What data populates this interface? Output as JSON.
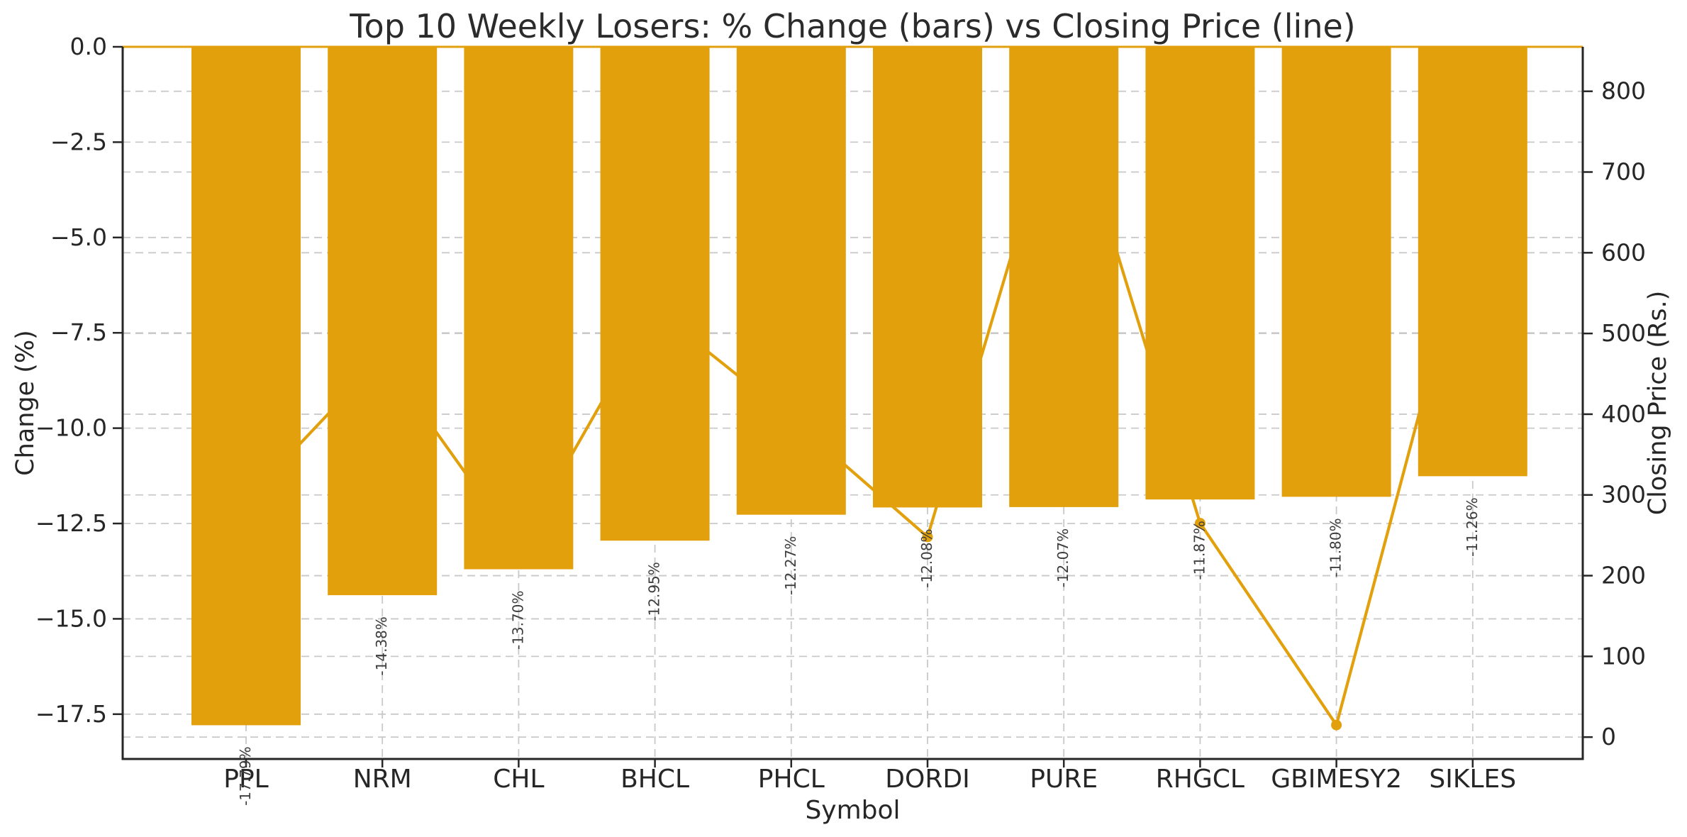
{
  "chart_data": {
    "type": "bar+line-dual-axis",
    "title": "Top 10 Weekly Losers: % Change (bars) vs Closing Price (line)",
    "xlabel": "Symbol",
    "ylabel_left": "Change (%)",
    "ylabel_right": "Closing Price (Rs.)",
    "categories": [
      "PPL",
      "NRM",
      "CHL",
      "BHCL",
      "PHCL",
      "DORDI",
      "PURE",
      "RHGCL",
      "GBIMESY2",
      "SIKLES"
    ],
    "series": [
      {
        "name": "% Change (bars)",
        "type": "bar",
        "axis": "left",
        "values": [
          -17.79,
          -14.38,
          -13.7,
          -12.95,
          -12.27,
          -12.08,
          -12.07,
          -11.87,
          -11.8,
          -11.26
        ],
        "bar_labels": [
          "-17.79%",
          "-14.38%",
          "-13.70%",
          "-12.95%",
          "-12.27%",
          "-12.08%",
          "-12.07%",
          "-11.87%",
          "-11.80%",
          "-11.26%"
        ]
      },
      {
        "name": "Closing Price (line)",
        "type": "line",
        "axis": "right",
        "values": [
          293,
          471,
          235,
          530,
          395,
          248,
          815,
          265,
          15,
          650
        ],
        "visible_markers": [
          "DORDI",
          "RHGCL",
          "GBIMESY2"
        ]
      }
    ],
    "left_ticks": {
      "values": [
        0,
        -2.5,
        -5,
        -7.5,
        -10,
        -12.5,
        -15,
        -17.5
      ],
      "labels": [
        "0.0",
        "−2.5",
        "−5.0",
        "−7.5",
        "−10.0",
        "−12.5",
        "−15.0",
        "−17.5"
      ]
    },
    "right_ticks": {
      "values": [
        0,
        100,
        200,
        300,
        400,
        500,
        600,
        700,
        800
      ],
      "labels": [
        "0",
        "100",
        "200",
        "300",
        "400",
        "500",
        "600",
        "700",
        "800"
      ]
    },
    "ylim_left": [
      -18.675,
      0
    ],
    "ylim_right": [
      -27.1,
      855.1
    ],
    "grid": true,
    "grid_style": "dashed",
    "legend_position": "none",
    "zero_line": true,
    "colors": {
      "accent": "#E2A00C",
      "text": "#262626",
      "annotation": "#3d3d3d",
      "grid": "#c9c9c9",
      "spine": "#262626",
      "background": "#ffffff"
    }
  }
}
